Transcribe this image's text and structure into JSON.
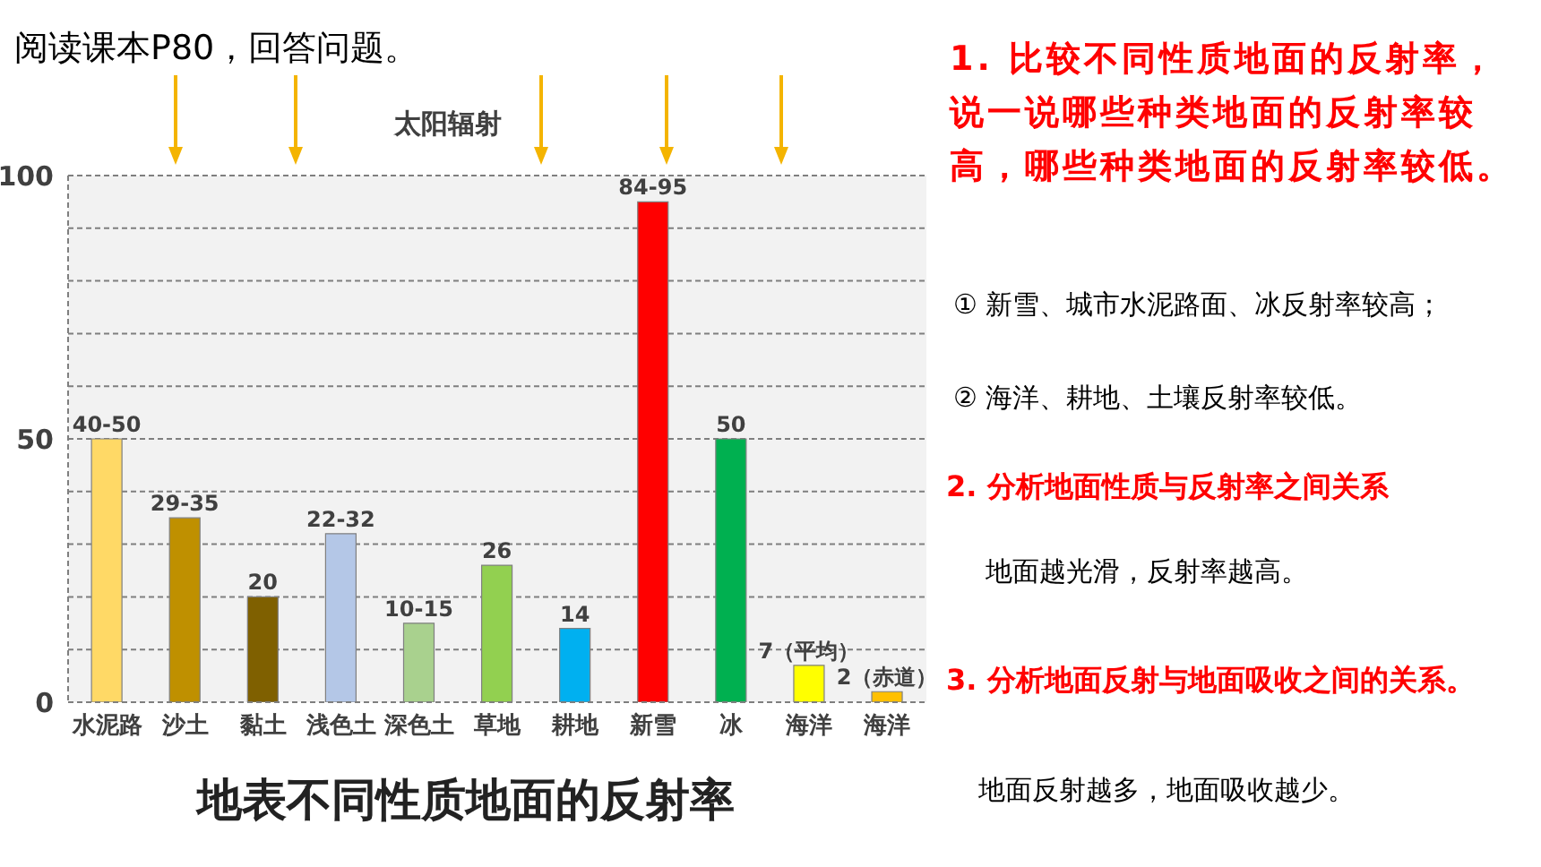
{
  "chart_data": {
    "type": "bar",
    "title": "地表不同性质地面的反射率",
    "categories": [
      "水泥路",
      "沙土",
      "黏土",
      "浅色土",
      "深色土",
      "草地",
      "耕地",
      "新雪",
      "冰",
      "海洋",
      "海洋"
    ],
    "values": [
      50,
      35,
      20,
      32,
      15,
      26,
      14,
      95,
      50,
      7,
      2
    ],
    "value_labels": [
      "40-50",
      "29-35",
      "20",
      "22-32",
      "10-15",
      "26",
      "14",
      "84-95",
      "50",
      "7（平均）",
      "2（赤道）"
    ],
    "colors": [
      "#ffd966",
      "#bf9000",
      "#7f6000",
      "#b4c7e7",
      "#a9d18e",
      "#92d050",
      "#00b0f0",
      "#ff0000",
      "#00b050",
      "#ffff00",
      "#ffc000"
    ],
    "ylim": [
      0,
      100
    ],
    "yticks": [
      0,
      {
        "value": 10,
        "label": null
      },
      {
        "value": 20,
        "label": null
      },
      {
        "value": 30,
        "label": null
      },
      {
        "value": 40,
        "label": null
      },
      50,
      {
        "value": 60,
        "label": null
      },
      {
        "value": 70,
        "label": null
      },
      {
        "value": 80,
        "label": null
      },
      {
        "value": 90,
        "label": null
      },
      100
    ],
    "grid": "y",
    "annotations": [
      "阅读课本P80，回答问题。",
      "太阳辐射",
      "1. 比较不同性质地面的反射率，说一说哪些种类地面的反射率较高，哪些种类地面的反射率较低。",
      "①  新雪、城市水泥路面、冰反射率较高；",
      "②  海洋、耕地、土壤反射率较低。",
      "2. 分析地面性质与反射率之间关系",
      "地面越光滑，反射率越高。",
      "3. 分析地面反射与地面吸收之间的关系。",
      "地面反射越多，地面吸收越少。"
    ]
  }
}
